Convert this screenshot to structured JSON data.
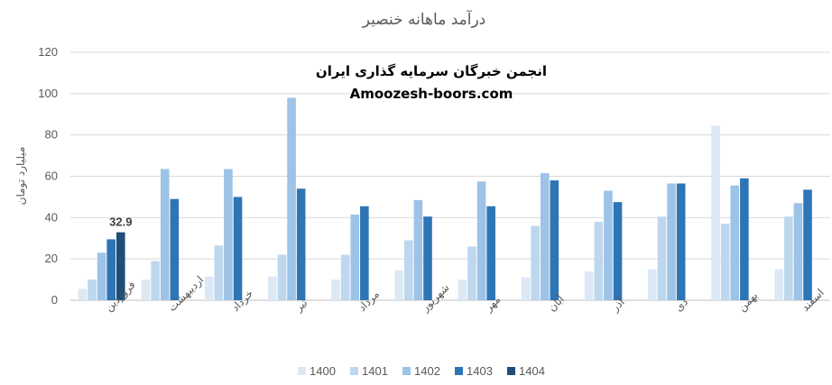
{
  "chart_data": {
    "type": "bar",
    "title": "درآمد ماهانه خنصیر",
    "ylabel": "میلیارد تومان",
    "xlabel": "",
    "ylim": [
      0,
      120
    ],
    "yticks": [
      0,
      20,
      40,
      60,
      80,
      100,
      120
    ],
    "grid": true,
    "legend_position": "bottom",
    "categories": [
      "فروردین",
      "اردیبهشت",
      "خرداد",
      "تیر",
      "مرداد",
      "شهریور",
      "مهر",
      "آبان",
      "آذر",
      "دی",
      "بهمن",
      "اسفند"
    ],
    "series": [
      {
        "name": "1400",
        "color": "#dde8f5",
        "values": [
          5.5,
          10,
          11.5,
          11.5,
          10,
          14.5,
          10,
          11,
          14,
          15,
          84.5,
          15
        ]
      },
      {
        "name": "1401",
        "color": "#bdd7ee",
        "values": [
          10,
          19,
          26.5,
          22,
          22,
          29,
          26,
          36,
          38,
          40.5,
          37,
          40.5
        ]
      },
      {
        "name": "1402",
        "color": "#9dc3e6",
        "values": [
          23,
          63.5,
          63.5,
          98,
          41.5,
          48.5,
          57.5,
          61.5,
          53,
          56.5,
          55.5,
          47
        ]
      },
      {
        "name": "1403",
        "color": "#2e75b6",
        "values": [
          29.5,
          49,
          50,
          54,
          45.5,
          40.5,
          45.5,
          58,
          47.5,
          56.5,
          59,
          53.5
        ]
      },
      {
        "name": "1404",
        "color": "#1f4e79",
        "values": [
          32.9,
          null,
          null,
          null,
          null,
          null,
          null,
          null,
          null,
          null,
          null,
          null
        ]
      }
    ],
    "data_labels": [
      {
        "series": "1404",
        "category": "فروردین",
        "text": "32.9"
      }
    ]
  },
  "watermark": {
    "line1": "انجمن خبرگان سرمایه گذاری ایران",
    "line2": "Amoozesh-boors.com"
  }
}
